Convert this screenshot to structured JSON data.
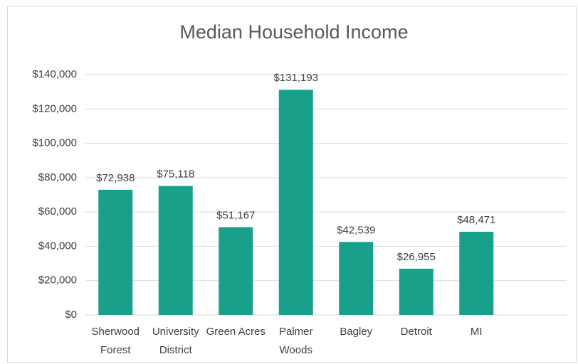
{
  "chart_data": {
    "type": "bar",
    "title": "Median Household Income",
    "categories": [
      "Sherwood Forest",
      "University District",
      "Green Acres",
      "Palmer Woods",
      "Bagley",
      "Detroit",
      "MI",
      null
    ],
    "values": [
      72938,
      75118,
      51167,
      131193,
      42539,
      26955,
      48471,
      null
    ],
    "value_labels": [
      "$72,938",
      "$75,118",
      "$51,167",
      "$131,193",
      "$42,539",
      "$26,955",
      "$48,471",
      null
    ],
    "color": "#18a08b",
    "ylim": [
      0,
      140000
    ],
    "yticks": [
      {
        "value": 0,
        "label": "$0"
      },
      {
        "value": 20000,
        "label": "$20,000"
      },
      {
        "value": 40000,
        "label": "$40,000"
      },
      {
        "value": 60000,
        "label": "$60,000"
      },
      {
        "value": 80000,
        "label": "$80,000"
      },
      {
        "value": 100000,
        "label": "$100,000"
      },
      {
        "value": 120000,
        "label": "$120,000"
      },
      {
        "value": 140000,
        "label": "$140,000"
      }
    ],
    "grid": true
  }
}
